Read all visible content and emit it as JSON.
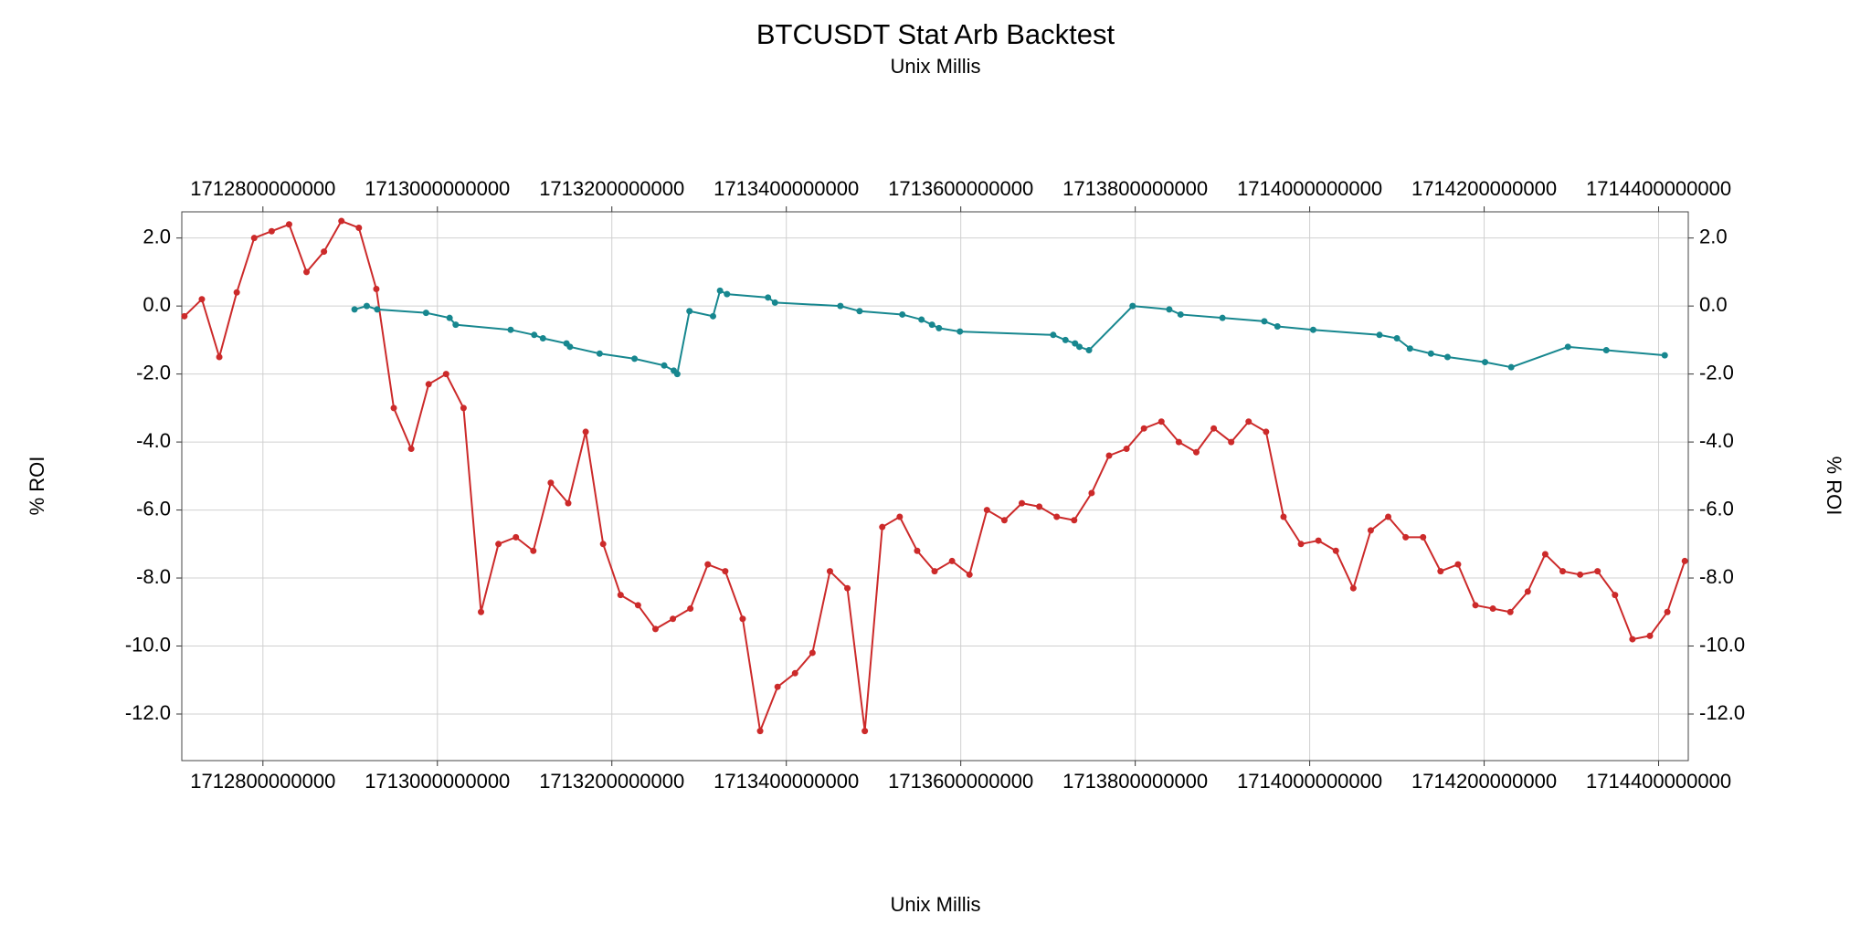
{
  "chart_data": {
    "type": "line",
    "title": "BTCUSDT Stat Arb Backtest",
    "x_label": "Unix Millis",
    "y_label": "% ROI",
    "xlim": [
      1712707000000,
      1714434000000
    ],
    "ylim": [
      -13.37,
      2.77
    ],
    "xticks": [
      1712800000000,
      1713000000000,
      1713200000000,
      1713400000000,
      1713600000000,
      1713800000000,
      1714000000000,
      1714200000000,
      1714400000000
    ],
    "yticks": [
      {
        "value": 2,
        "label": "2.0"
      },
      {
        "value": 0,
        "label": "0.0"
      },
      {
        "value": -2,
        "label": "-2.0"
      },
      {
        "value": -4,
        "label": "-4.0"
      },
      {
        "value": -6,
        "label": "-6.0"
      },
      {
        "value": -8,
        "label": "-8.0"
      },
      {
        "value": -10,
        "label": "-10.0"
      },
      {
        "value": -12,
        "label": "-12.0"
      }
    ],
    "grid": true,
    "series": [
      {
        "color": "#cc2a2a",
        "x": [
          1712710000000,
          1712730000000,
          1712750000000,
          1712770000000,
          1712790000000,
          1712810000000,
          1712830000000,
          1712850000000,
          1712870000000,
          1712890000000,
          1712910000000,
          1712930000000,
          1712950000000,
          1712970000000,
          1712990000000,
          1713010000000,
          1713030000000,
          1713050000000,
          1713070000000,
          1713090000000,
          1713110000000,
          1713130000000,
          1713150000000,
          1713170000000,
          1713190000000,
          1713210000000,
          1713230000000,
          1713250000000,
          1713270000000,
          1713290000000,
          1713310000000,
          1713330000000,
          1713350000000,
          1713370000000,
          1713390000000,
          1713410000000,
          1713430000000,
          1713450000000,
          1713470000000,
          1713490000000,
          1713510000000,
          1713530000000,
          1713550000000,
          1713570000000,
          1713590000000,
          1713610000000,
          1713630000000,
          1713650000000,
          1713670000000,
          1713690000000,
          1713710000000,
          1713730000000,
          1713750000000,
          1713770000000,
          1713790000000,
          1713810000000,
          1713830000000,
          1713850000000,
          1713870000000,
          1713890000000,
          1713910000000,
          1713930000000,
          1713950000000,
          1713970000000,
          1713990000000,
          1714010000000,
          1714030000000,
          1714050000000,
          1714070000000,
          1714090000000,
          1714110000000,
          1714130000000,
          1714150000000,
          1714170000000,
          1714190000000,
          1714210000000,
          1714230000000,
          1714250000000,
          1714270000000,
          1714290000000,
          1714310000000,
          1714330000000,
          1714350000000,
          1714370000000,
          1714390000000,
          1714410000000,
          1714430000000
        ],
        "values": [
          -0.3,
          0.2,
          -1.5,
          0.4,
          2.0,
          2.2,
          2.4,
          1.0,
          1.6,
          2.5,
          2.3,
          0.5,
          -3.0,
          -4.2,
          -2.3,
          -2.0,
          -3.0,
          -9.0,
          -7.0,
          -6.8,
          -7.2,
          -5.2,
          -5.8,
          -3.7,
          -7.0,
          -8.5,
          -8.8,
          -9.5,
          -9.2,
          -8.9,
          -7.6,
          -7.8,
          -9.2,
          -12.5,
          -11.2,
          -10.8,
          -10.2,
          -7.8,
          -8.3,
          -12.5,
          -6.5,
          -6.2,
          -7.2,
          -7.8,
          -7.5,
          -7.9,
          -6.0,
          -6.3,
          -5.8,
          -5.9,
          -6.2,
          -6.3,
          -5.5,
          -4.4,
          -4.2,
          -3.6,
          -3.4,
          -4.0,
          -4.3,
          -3.6,
          -4.0,
          -3.4,
          -3.7,
          -6.2,
          -7.0,
          -6.9,
          -7.2,
          -8.3,
          -6.6,
          -6.2,
          -6.8,
          -6.8,
          -7.8,
          -7.6,
          -8.8,
          -8.9,
          -9.0,
          -8.4,
          -7.3,
          -7.8,
          -7.9,
          -7.8,
          -8.5,
          -9.8,
          -9.7,
          -9.0,
          -7.5
        ]
      },
      {
        "color": "#17878f",
        "x": [
          1712905000000,
          1712919000000,
          1712931000000,
          1712987000000,
          1713014000000,
          1713021000000,
          1713084000000,
          1713111000000,
          1713121000000,
          1713148000000,
          1713152000000,
          1713186000000,
          1713226000000,
          1713260000000,
          1713271000000,
          1713275000000,
          1713289000000,
          1713316000000,
          1713324000000,
          1713332000000,
          1713379000000,
          1713387000000,
          1713462000000,
          1713484000000,
          1713533000000,
          1713555000000,
          1713567000000,
          1713575000000,
          1713599000000,
          1713706000000,
          1713720000000,
          1713731000000,
          1713736000000,
          1713747000000,
          1713797000000,
          1713839000000,
          1713852000000,
          1713900000000,
          1713948000000,
          1713963000000,
          1714004000000,
          1714080000000,
          1714100000000,
          1714115000000,
          1714139000000,
          1714158000000,
          1714201000000,
          1714231000000,
          1714296000000,
          1714340000000,
          1714407000000
        ],
        "values": [
          -0.1,
          0.0,
          -0.1,
          -0.2,
          -0.35,
          -0.55,
          -0.7,
          -0.85,
          -0.95,
          -1.1,
          -1.2,
          -1.4,
          -1.55,
          -1.75,
          -1.9,
          -2.0,
          -0.15,
          -0.3,
          0.45,
          0.35,
          0.25,
          0.1,
          0.0,
          -0.15,
          -0.25,
          -0.4,
          -0.55,
          -0.65,
          -0.75,
          -0.85,
          -1.0,
          -1.1,
          -1.2,
          -1.3,
          0.0,
          -0.1,
          -0.25,
          -0.35,
          -0.45,
          -0.6,
          -0.7,
          -0.85,
          -0.95,
          -1.25,
          -1.4,
          -1.5,
          -1.65,
          -1.8,
          -1.2,
          -1.3,
          -1.45
        ]
      }
    ]
  }
}
